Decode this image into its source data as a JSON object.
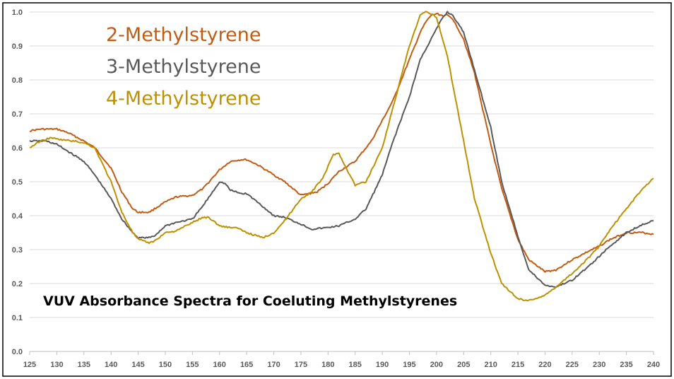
{
  "chart_data": {
    "type": "line",
    "title": "VUV Absorbance Spectra for Coeluting Methylstyrenes",
    "xlabel": "",
    "ylabel": "",
    "xlim": [
      125,
      240
    ],
    "ylim": [
      0.0,
      1.0
    ],
    "x_ticks": [
      "125",
      "130",
      "135",
      "140",
      "145",
      "150",
      "155",
      "160",
      "165",
      "170",
      "175",
      "180",
      "185",
      "190",
      "195",
      "200",
      "205",
      "210",
      "215",
      "220",
      "225",
      "230",
      "235",
      "240"
    ],
    "y_ticks": [
      "0.0",
      "0.1",
      "0.2",
      "0.3",
      "0.4",
      "0.5",
      "0.6",
      "0.7",
      "0.8",
      "0.9",
      "1.0"
    ],
    "grid": "horizontal",
    "legend_placement": "top-left",
    "series": [
      {
        "name": "2-Methylstyrene",
        "color": "#c55a11",
        "x": [
          125,
          127,
          130,
          132,
          135,
          137,
          140,
          142,
          144,
          145,
          147,
          148,
          150,
          152,
          155,
          157,
          160,
          162,
          164,
          165,
          167,
          170,
          172,
          175,
          178,
          180,
          182,
          185,
          188,
          190,
          192,
          195,
          197,
          198,
          199,
          200,
          201,
          202,
          203,
          205,
          207,
          210,
          212,
          215,
          217,
          220,
          222,
          225,
          228,
          230,
          232,
          235,
          238,
          240
        ],
        "y": [
          0.65,
          0.655,
          0.655,
          0.645,
          0.62,
          0.6,
          0.54,
          0.47,
          0.42,
          0.41,
          0.41,
          0.42,
          0.44,
          0.455,
          0.46,
          0.48,
          0.535,
          0.56,
          0.565,
          0.565,
          0.55,
          0.52,
          0.5,
          0.46,
          0.47,
          0.495,
          0.53,
          0.56,
          0.62,
          0.68,
          0.74,
          0.86,
          0.94,
          0.97,
          0.99,
          0.995,
          0.99,
          0.99,
          0.98,
          0.92,
          0.82,
          0.61,
          0.48,
          0.33,
          0.27,
          0.235,
          0.24,
          0.27,
          0.295,
          0.31,
          0.33,
          0.35,
          0.35,
          0.345
        ]
      },
      {
        "name": "3-Methylstyrene",
        "color": "#595959",
        "x": [
          125,
          128,
          130,
          132,
          135,
          137,
          140,
          142,
          144,
          145,
          147,
          148,
          150,
          152,
          155,
          157,
          160,
          161,
          162,
          164,
          165,
          167,
          170,
          172,
          175,
          177,
          180,
          182,
          185,
          187,
          190,
          192,
          195,
          197,
          200,
          201,
          202,
          203,
          205,
          207,
          210,
          212,
          215,
          217,
          220,
          222,
          225,
          228,
          230,
          232,
          235,
          238,
          240
        ],
        "y": [
          0.62,
          0.62,
          0.61,
          0.59,
          0.56,
          0.52,
          0.45,
          0.39,
          0.35,
          0.335,
          0.335,
          0.34,
          0.37,
          0.38,
          0.39,
          0.43,
          0.5,
          0.495,
          0.475,
          0.465,
          0.465,
          0.44,
          0.4,
          0.395,
          0.375,
          0.36,
          0.365,
          0.37,
          0.39,
          0.42,
          0.52,
          0.62,
          0.75,
          0.86,
          0.95,
          0.98,
          1.0,
          0.99,
          0.94,
          0.83,
          0.66,
          0.5,
          0.34,
          0.24,
          0.195,
          0.19,
          0.21,
          0.25,
          0.28,
          0.31,
          0.35,
          0.375,
          0.385
        ]
      },
      {
        "name": "4-Methylstyrene",
        "color": "#bf9000",
        "x": [
          125,
          127,
          129,
          130,
          133,
          135,
          137,
          140,
          142,
          144,
          145,
          147,
          148,
          150,
          152,
          155,
          157,
          158,
          160,
          162,
          163,
          165,
          168,
          170,
          172,
          175,
          177,
          179,
          180,
          181,
          182,
          183,
          185,
          187,
          190,
          192,
          195,
          197,
          198,
          199,
          200,
          202,
          205,
          207,
          210,
          212,
          215,
          217,
          220,
          222,
          225,
          228,
          230,
          232,
          235,
          238,
          240
        ],
        "y": [
          0.6,
          0.62,
          0.63,
          0.625,
          0.62,
          0.615,
          0.6,
          0.5,
          0.41,
          0.35,
          0.33,
          0.32,
          0.325,
          0.35,
          0.355,
          0.38,
          0.395,
          0.395,
          0.37,
          0.365,
          0.365,
          0.35,
          0.335,
          0.35,
          0.385,
          0.45,
          0.47,
          0.51,
          0.545,
          0.58,
          0.585,
          0.55,
          0.49,
          0.5,
          0.6,
          0.72,
          0.9,
          0.99,
          1.0,
          0.995,
          0.985,
          0.87,
          0.62,
          0.45,
          0.29,
          0.2,
          0.155,
          0.15,
          0.165,
          0.19,
          0.23,
          0.275,
          0.31,
          0.36,
          0.42,
          0.48,
          0.51
        ]
      }
    ]
  }
}
